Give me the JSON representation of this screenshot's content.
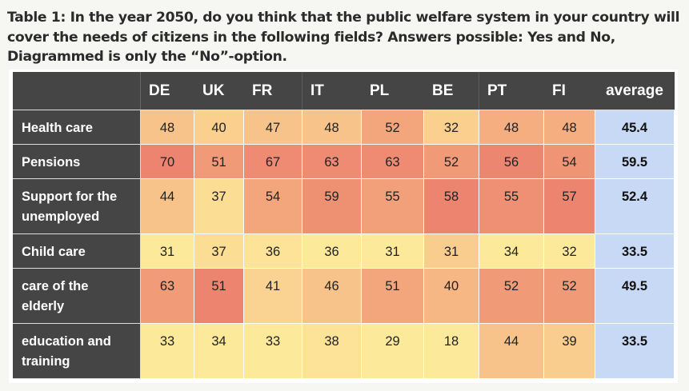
{
  "title": "Table 1: In the year 2050, do you think that the public welfare system in your country will cover the needs of citizens in the following fields? Answers possible: Yes and No, Diagrammed is only the “No”-option.",
  "chart_data": {
    "type": "heatmap",
    "title": "Table 1: In the year 2050, do you think that the public welfare system in your country will cover the needs of citizens in the following fields? Answers possible: Yes and No, Diagrammed is only the “No”-option.",
    "columns": [
      "DE",
      "UK",
      "FR",
      "IT",
      "PL",
      "BE",
      "PT",
      "FI",
      "average"
    ],
    "rows": [
      {
        "label": "Health care",
        "values": [
          "48",
          "40",
          "47",
          "48",
          "52",
          "32",
          "48",
          "48"
        ],
        "average": "45.4",
        "colors": [
          "#f8c38a",
          "#fbd08f",
          "#f8c38a",
          "#f8c38a",
          "#f3a57c",
          "#fbd08f",
          "#f4ae80",
          "#f4ae80"
        ]
      },
      {
        "label": "Pensions",
        "values": [
          "70",
          "51",
          "67",
          "63",
          "63",
          "52",
          "56",
          "54"
        ],
        "average": "59.5",
        "colors": [
          "#ec8470",
          "#f09a78",
          "#ee8b72",
          "#ee8b72",
          "#ee8b72",
          "#f09a78",
          "#ed8670",
          "#ef9575"
        ]
      },
      {
        "label": "Support for the unemployed",
        "values": [
          "44",
          "37",
          "54",
          "59",
          "55",
          "58",
          "55",
          "57"
        ],
        "average": "52.4",
        "colors": [
          "#f8c38a",
          "#fcdd94",
          "#f3a57c",
          "#ee9173",
          "#f1a07a",
          "#ec8470",
          "#ef8f73",
          "#ec8470"
        ]
      },
      {
        "label": "Child care",
        "values": [
          "31",
          "37",
          "36",
          "36",
          "31",
          "31",
          "34",
          "32"
        ],
        "average": "33.5",
        "colors": [
          "#fde99a",
          "#fcdd94",
          "#fce397",
          "#fde99a",
          "#fde99a",
          "#f9cd8e",
          "#fde99a",
          "#fde99a"
        ]
      },
      {
        "label": "care of the elderly",
        "values": [
          "63",
          "51",
          "41",
          "46",
          "51",
          "40",
          "52",
          "52"
        ],
        "average": "49.5",
        "colors": [
          "#f19b78",
          "#ec8470",
          "#fad291",
          "#f8c38a",
          "#f3a57c",
          "#f6b785",
          "#f09a78",
          "#f09a78"
        ]
      },
      {
        "label": "education and training",
        "values": [
          "33",
          "34",
          "33",
          "38",
          "29",
          "18",
          "44",
          "39"
        ],
        "average": "33.5",
        "colors": [
          "#fde99a",
          "#fde99a",
          "#fde99a",
          "#fce397",
          "#fde99a",
          "#fde99a",
          "#f8c38a",
          "#f9cd8e"
        ]
      }
    ],
    "average_color": "#c8d9f5",
    "header_color": "#454545"
  }
}
